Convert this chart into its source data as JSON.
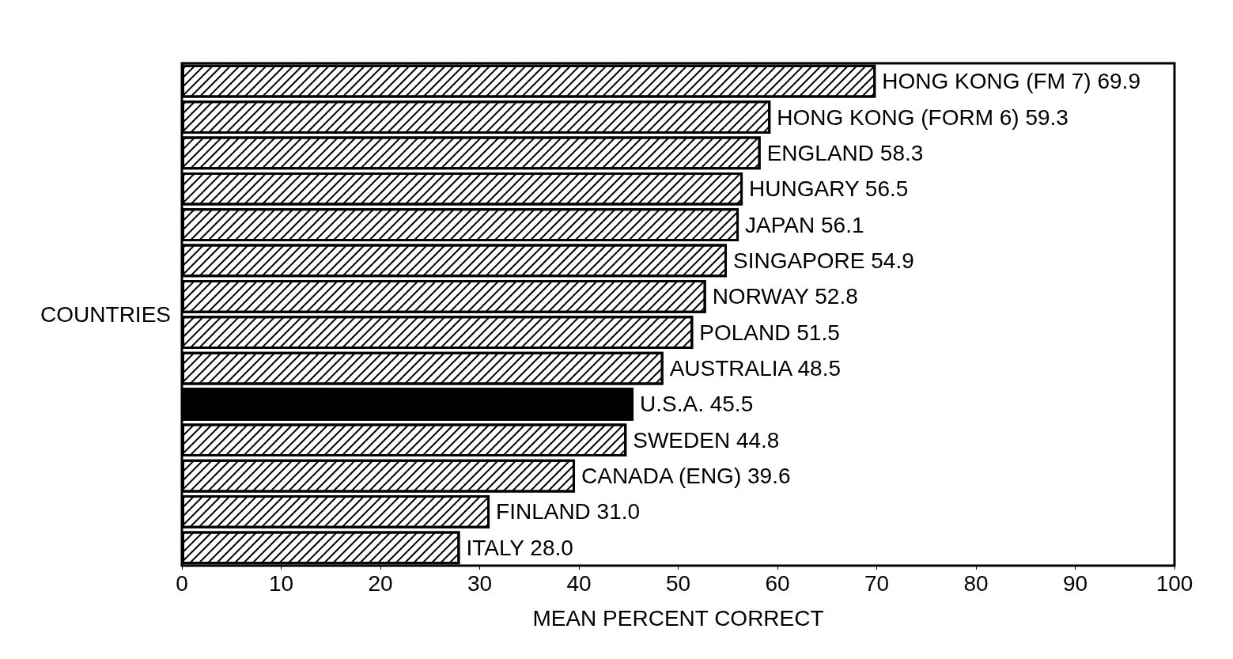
{
  "chart_data": {
    "type": "bar",
    "orientation": "horizontal",
    "xlabel": "MEAN PERCENT CORRECT",
    "ylabel": "COUNTRIES",
    "categories": [
      "HONG KONG (FM 7)",
      "HONG KONG (FORM 6)",
      "ENGLAND",
      "HUNGARY",
      "JAPAN",
      "SINGAPORE",
      "NORWAY",
      "POLAND",
      "AUSTRALIA",
      "U.S.A.",
      "SWEDEN",
      "CANADA (ENG)",
      "FINLAND",
      "ITALY"
    ],
    "values": [
      69.9,
      59.3,
      58.3,
      56.5,
      56.1,
      54.9,
      52.8,
      51.5,
      48.5,
      45.5,
      44.8,
      39.6,
      31.0,
      28.0
    ],
    "value_labels": [
      "69.9",
      "59.3",
      "58.3",
      "56.5",
      "56.1",
      "54.9",
      "52.8",
      "51.5",
      "48.5",
      "45.5",
      "44.8",
      "39.6",
      "31.0",
      "28.0"
    ],
    "colors": [
      "#ffffff",
      "#ffffff",
      "#ffffff",
      "#ffffff",
      "#ffffff",
      "#ffffff",
      "#ffffff",
      "#ffffff",
      "#ffffff",
      "#000000",
      "#ffffff",
      "#ffffff",
      "#ffffff",
      "#ffffff"
    ],
    "xlim": [
      0,
      100
    ],
    "xticks": [
      0,
      10,
      20,
      30,
      40,
      50,
      60,
      70,
      80,
      90,
      100
    ],
    "grid": false
  }
}
